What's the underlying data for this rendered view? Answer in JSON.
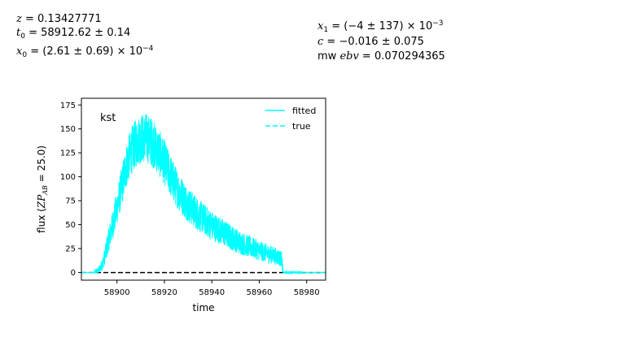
{
  "params": {
    "z": "0.13427771",
    "t0": "58912.62 ± 0.14",
    "x0": "(2.61 ± 0.69) × 10",
    "x0_exp": "−4",
    "x1": "(−4 ± 137) × 10",
    "x1_exp": "−3",
    "c": "−0.016 ± 0.075",
    "mwebv": "0.070294365"
  },
  "colors": {
    "fitted": "#00ffff",
    "true": "#00ffff",
    "zero_line": "#000000"
  },
  "chart_data": {
    "type": "line",
    "band": "kst",
    "xlabel": "time",
    "ylabel": "flux (ZP_AB = 25.0)",
    "xlim": [
      58885,
      58988
    ],
    "ylim": [
      -8,
      182
    ],
    "xticks": [
      58900,
      58920,
      58940,
      58960,
      58980
    ],
    "yticks": [
      0,
      25,
      50,
      75,
      100,
      125,
      150,
      175
    ],
    "legend": {
      "position": "top-right",
      "entries": [
        "fitted",
        "true"
      ]
    },
    "zero_line": {
      "y": 0,
      "style": "dashed",
      "color": "#000000"
    },
    "series": [
      {
        "name": "fitted",
        "style": "solid",
        "noisy": true,
        "x": [
          58885,
          58890,
          58892,
          58893,
          58894,
          58895,
          58896,
          58898,
          58900,
          58902,
          58904,
          58906,
          58908,
          58910,
          58912,
          58914,
          58916,
          58918,
          58920,
          58922,
          58924,
          58926,
          58928,
          58930,
          58932,
          58934,
          58936,
          58938,
          58940,
          58942,
          58944,
          58946,
          58948,
          58950,
          58952,
          58954,
          58956,
          58958,
          58960,
          58962,
          58964,
          58966,
          58968,
          58969.5,
          58970,
          58975,
          58978,
          58988
        ],
        "values": [
          0,
          0,
          2,
          5,
          10,
          18,
          30,
          48,
          68,
          90,
          112,
          127,
          135,
          140,
          141,
          138,
          132,
          124,
          115,
          104,
          94,
          85,
          78,
          71,
          66,
          61,
          57,
          53,
          49,
          46,
          43,
          40,
          37,
          34,
          31,
          29,
          27,
          25,
          23,
          21,
          19.5,
          18,
          16,
          14,
          0,
          0,
          0,
          0
        ]
      },
      {
        "name": "true",
        "style": "dashed",
        "noisy": false,
        "x": [
          58885,
          58890,
          58892,
          58893,
          58894,
          58895,
          58896,
          58898,
          58900,
          58902,
          58904,
          58906,
          58908,
          58910,
          58912,
          58914,
          58916,
          58918,
          58920,
          58922,
          58924,
          58926,
          58928,
          58930,
          58932,
          58934,
          58936,
          58938,
          58940,
          58942,
          58944,
          58946,
          58948,
          58950,
          58952,
          58954,
          58956,
          58958,
          58960,
          58962,
          58964,
          58966,
          58968,
          58969.5,
          58970,
          58975,
          58978,
          58988
        ],
        "values": [
          0,
          0,
          2,
          5,
          10,
          18,
          30,
          48,
          68,
          90,
          112,
          127,
          135,
          140,
          141,
          138,
          132,
          124,
          115,
          104,
          94,
          85,
          78,
          71,
          66,
          61,
          57,
          53,
          49,
          46,
          43,
          40,
          37,
          34,
          31,
          29,
          27,
          25,
          23,
          21,
          19.5,
          18,
          16,
          14,
          0,
          0,
          0,
          0
        ]
      }
    ]
  }
}
